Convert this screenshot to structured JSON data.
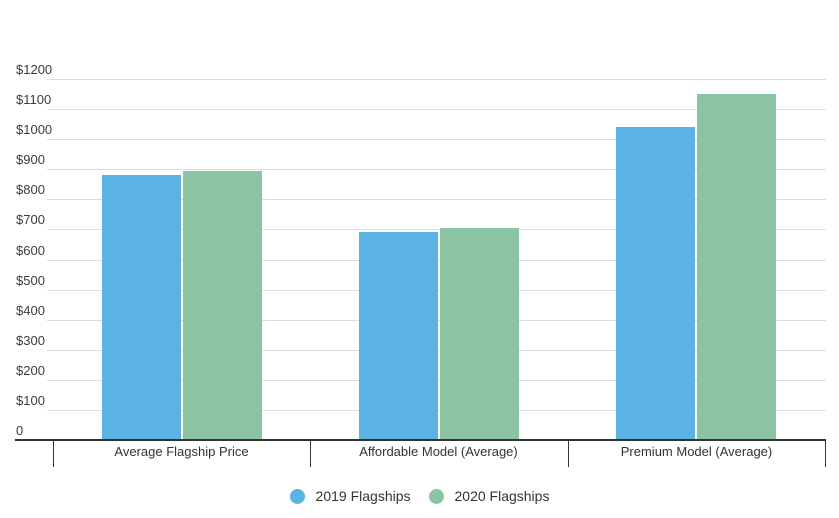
{
  "chart_data": {
    "type": "bar",
    "title": "",
    "categories": [
      "Average Flagship Price",
      "Affordable Model (Average)",
      "Premium Model (Average)"
    ],
    "series": [
      {
        "name": "2019 Flagships",
        "color": "#5BB3E4",
        "values": [
          880,
          690,
          1040
        ]
      },
      {
        "name": "2020 Flagships",
        "color": "#8CC3A3",
        "values": [
          895,
          705,
          1150
        ]
      }
    ],
    "xlabel": "",
    "ylabel": "",
    "ylim": [
      0,
      1200
    ],
    "y_tick_step": 100,
    "y_tick_labels": [
      "0",
      "$100",
      "$200",
      "$300",
      "$400",
      "$500",
      "$600",
      "$700",
      "$800",
      "$900",
      "$1000",
      "$1100",
      "$1200"
    ],
    "grid": true,
    "legend_position": "bottom",
    "colors": {
      "grid_line": "#DCDCDC",
      "axis_line": "#333333",
      "axis_text": "#3C3C3C",
      "category_text": "#333333",
      "legend_text": "#333333",
      "background": "#FFFFFF"
    }
  }
}
